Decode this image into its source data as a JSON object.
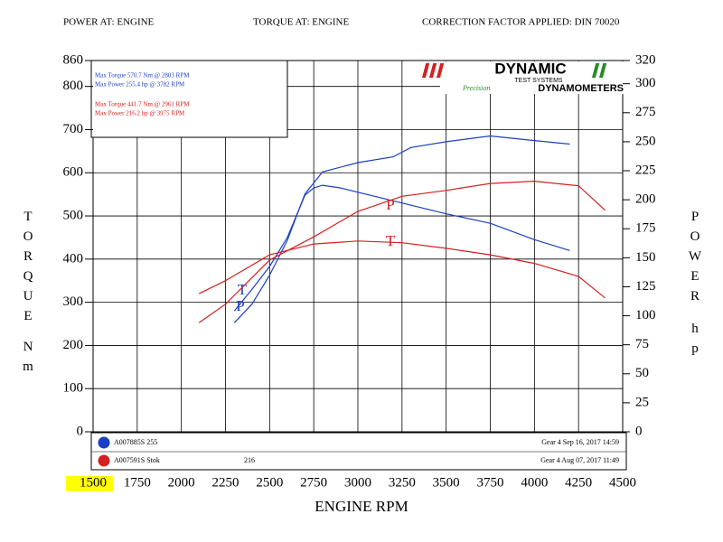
{
  "chart_data": {
    "type": "line",
    "header": [
      "POWER AT: ENGINE",
      "TORQUE AT: ENGINE",
      "CORRECTION FACTOR APPLIED:  DIN 70020"
    ],
    "summary": [
      {
        "text": "Max Torque 570.7 Nm @ 2803 RPM",
        "color": "#1a3fc4"
      },
      {
        "text": "Max Power 255.4 hp @ 3782 RPM",
        "color": "#1a3fc4"
      },
      {
        "text": "Max Torque 441.7 Nm @ 2961 RPM",
        "color": "#d42020"
      },
      {
        "text": "Max Power 216.2 hp @ 3975 RPM",
        "color": "#d42020"
      }
    ],
    "logo": {
      "name": "DYNAMIC",
      "sub": "TEST SYSTEMS",
      "script": "Precision",
      "tag": "DYNAMOMETERS"
    },
    "ylabel": "TORQUE",
    "ylabel_unit": "Nm",
    "y2label": "POWER",
    "y2label_unit": "hp",
    "xlabel": "ENGINE RPM",
    "xlim": [
      1500,
      4500
    ],
    "xticks": [
      1500,
      1750,
      2000,
      2250,
      2500,
      2750,
      3000,
      3250,
      3500,
      3750,
      4000,
      4250,
      4500
    ],
    "ylim": [
      0,
      860
    ],
    "yticks": [
      0,
      100,
      200,
      300,
      400,
      500,
      600,
      700,
      800,
      860
    ],
    "y2lim": [
      0,
      320
    ],
    "y2ticks": [
      0,
      25,
      50,
      75,
      100,
      125,
      150,
      175,
      200,
      225,
      250,
      275,
      300,
      320
    ],
    "grid": true,
    "series": [
      {
        "name": "T",
        "color": "#1a3fc4",
        "axis": "y",
        "x": [
          2300,
          2400,
          2500,
          2600,
          2700,
          2750,
          2800,
          2900,
          3000,
          3250,
          3500,
          3750,
          4000,
          4200
        ],
        "values": [
          280,
          330,
          383,
          450,
          548,
          565,
          571,
          565,
          555,
          530,
          505,
          483,
          445,
          420
        ]
      },
      {
        "name": "P",
        "color": "#1a3fc4",
        "axis": "y2",
        "x": [
          2300,
          2400,
          2500,
          2600,
          2700,
          2800,
          3000,
          3200,
          3300,
          3500,
          3750,
          4000,
          4200
        ],
        "values": [
          94,
          110,
          135,
          165,
          205,
          224,
          232,
          237,
          245,
          250,
          255,
          251,
          248
        ]
      },
      {
        "name": "T",
        "color": "#d42020",
        "axis": "y",
        "x": [
          2100,
          2250,
          2500,
          2750,
          3000,
          3250,
          3500,
          3750,
          4000,
          4250,
          4400
        ],
        "values": [
          320,
          350,
          410,
          435,
          442,
          438,
          425,
          410,
          390,
          360,
          310
        ]
      },
      {
        "name": "P",
        "color": "#d42020",
        "axis": "y2",
        "x": [
          2100,
          2250,
          2500,
          2750,
          3000,
          3250,
          3500,
          3750,
          4000,
          4250,
          4400
        ],
        "values": [
          94,
          110,
          148,
          168,
          190,
          203,
          208,
          214,
          216,
          212,
          191
        ]
      }
    ],
    "runs": [
      {
        "name": "A007885S 255",
        "info": "Gear 4 Sep 16, 2017 14:59",
        "color": "#1a3fc4"
      },
      {
        "name": "A007591S Stok",
        "note": "216",
        "info": "Gear 4 Aug 07, 2017 11:49",
        "color": "#d42020"
      }
    ]
  }
}
